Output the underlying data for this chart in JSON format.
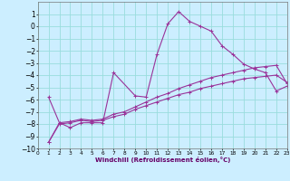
{
  "xlabel": "Windchill (Refroidissement éolien,°C)",
  "bg_color": "#cceeff",
  "grid_color": "#99dddd",
  "line_color": "#993399",
  "xlim": [
    0,
    23
  ],
  "ylim": [
    -10,
    2
  ],
  "xticks": [
    0,
    1,
    2,
    3,
    4,
    5,
    6,
    7,
    8,
    9,
    10,
    11,
    12,
    13,
    14,
    15,
    16,
    17,
    18,
    19,
    20,
    21,
    22,
    23
  ],
  "yticks": [
    1,
    0,
    -1,
    -2,
    -3,
    -4,
    -5,
    -6,
    -7,
    -8,
    -9,
    -10
  ],
  "line1_x": [
    1,
    2,
    3,
    4,
    5,
    6,
    7,
    9,
    10,
    11,
    12,
    13,
    14,
    15,
    16,
    17,
    18,
    19,
    20,
    21,
    22,
    23
  ],
  "line1_y": [
    -5.8,
    -7.9,
    -8.3,
    -7.9,
    -7.9,
    -7.9,
    -3.8,
    -5.7,
    -5.8,
    -2.3,
    0.2,
    1.2,
    0.4,
    0.0,
    -0.4,
    -1.6,
    -2.3,
    -3.1,
    -3.5,
    -3.8,
    -5.3,
    -4.9
  ],
  "line2_x": [
    1,
    2,
    3,
    4,
    5,
    6,
    7,
    8,
    9,
    10,
    11,
    12,
    13,
    14,
    15,
    16,
    17,
    18,
    19,
    20,
    21,
    22,
    23
  ],
  "line2_y": [
    -9.5,
    -7.9,
    -7.8,
    -7.6,
    -7.7,
    -7.6,
    -7.2,
    -7.0,
    -6.6,
    -6.2,
    -5.8,
    -5.5,
    -5.1,
    -4.8,
    -4.5,
    -4.2,
    -4.0,
    -3.8,
    -3.6,
    -3.4,
    -3.3,
    -3.2,
    -4.7
  ],
  "line3_x": [
    1,
    2,
    3,
    4,
    5,
    6,
    7,
    8,
    9,
    10,
    11,
    12,
    13,
    14,
    15,
    16,
    17,
    18,
    19,
    20,
    21,
    22,
    23
  ],
  "line3_y": [
    -9.5,
    -8.0,
    -7.9,
    -7.7,
    -7.8,
    -7.7,
    -7.4,
    -7.2,
    -6.8,
    -6.5,
    -6.2,
    -5.9,
    -5.6,
    -5.4,
    -5.1,
    -4.9,
    -4.7,
    -4.5,
    -4.3,
    -4.2,
    -4.1,
    -4.0,
    -4.6
  ]
}
